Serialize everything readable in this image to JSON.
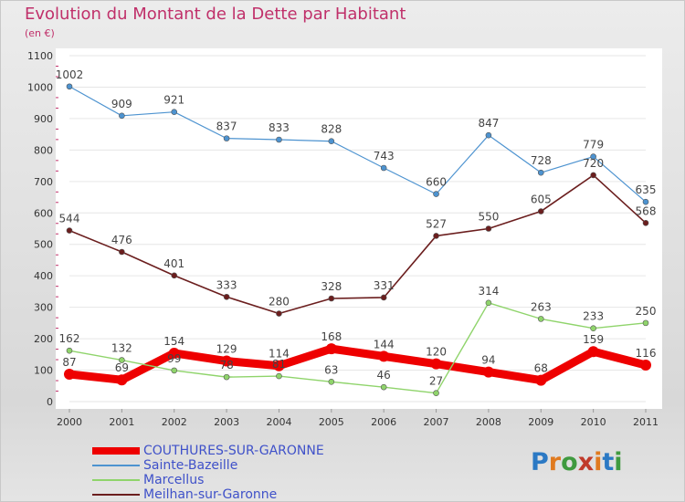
{
  "title": "Evolution du Montant de la Dette par Habitant",
  "subtitle": "(en €)",
  "logo": {
    "letters": [
      "P",
      "r",
      "o",
      "x",
      "i",
      "t",
      "i"
    ],
    "colors": [
      "#2b79c4",
      "#e07a1f",
      "#3f9a3f",
      "#c03a2b",
      "#e07a1f",
      "#2b79c4",
      "#3f9a3f"
    ]
  },
  "chart_data": {
    "type": "line",
    "title": "Evolution du Montant de la Dette par Habitant",
    "ylabel": "(en €)",
    "xlabel": "",
    "x": [
      "2000",
      "2001",
      "2002",
      "2003",
      "2004",
      "2005",
      "2006",
      "2007",
      "2008",
      "2009",
      "2010",
      "2011"
    ],
    "ylim": [
      0,
      1100
    ],
    "yticks": [
      0,
      100,
      200,
      300,
      400,
      500,
      600,
      700,
      800,
      900,
      1000,
      1100
    ],
    "grid": true,
    "legend_position": "bottom",
    "series": [
      {
        "name": "COUTHURES-SUR-GARONNE",
        "color": "#ee0000",
        "values": [
          87,
          69,
          154,
          129,
          114,
          168,
          144,
          120,
          94,
          68,
          159,
          116
        ]
      },
      {
        "name": "Sainte-Bazeille",
        "color": "#4d93d0",
        "values": [
          1002,
          909,
          921,
          837,
          833,
          828,
          743,
          660,
          847,
          728,
          779,
          635
        ]
      },
      {
        "name": "Marcellus",
        "color": "#8fd46b",
        "values": [
          162,
          132,
          99,
          78,
          81,
          63,
          46,
          27,
          314,
          263,
          233,
          250
        ]
      },
      {
        "name": "Meilhan-sur-Garonne",
        "color": "#6b1e1e",
        "values": [
          544,
          476,
          401,
          333,
          280,
          328,
          331,
          527,
          550,
          605,
          720,
          568
        ]
      }
    ]
  }
}
